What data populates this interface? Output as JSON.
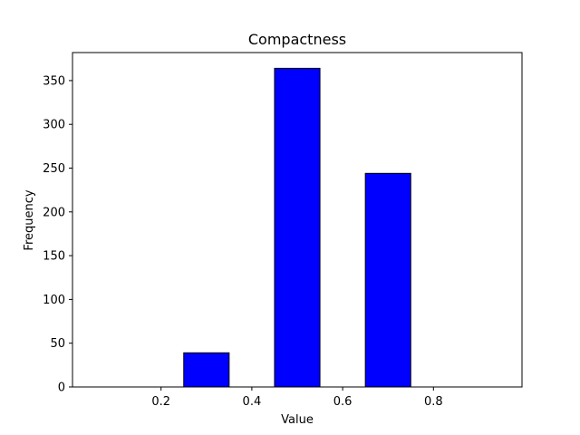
{
  "chart_data": {
    "type": "bar",
    "title": "Compactness",
    "xlabel": "Value",
    "ylabel": "Frequency",
    "bars": [
      {
        "x_start": 0.05,
        "x_end": 0.15,
        "value": 0
      },
      {
        "x_start": 0.25,
        "x_end": 0.35,
        "value": 39
      },
      {
        "x_start": 0.45,
        "x_end": 0.55,
        "value": 364
      },
      {
        "x_start": 0.65,
        "x_end": 0.75,
        "value": 244
      },
      {
        "x_start": 0.85,
        "x_end": 0.95,
        "value": 0
      }
    ],
    "xlim": [
      0.005,
      0.995
    ],
    "ylim": [
      0,
      382
    ],
    "xticks": [
      0.2,
      0.4,
      0.6,
      0.8
    ],
    "xtick_labels": [
      "0.2",
      "0.4",
      "0.6",
      "0.8"
    ],
    "yticks": [
      0,
      50,
      100,
      150,
      200,
      250,
      300,
      350
    ],
    "ytick_labels": [
      "0",
      "50",
      "100",
      "150",
      "200",
      "250",
      "300",
      "350"
    ],
    "bar_color": "#0000ff",
    "edge_color": "#000000",
    "grid": false,
    "legend": false
  }
}
